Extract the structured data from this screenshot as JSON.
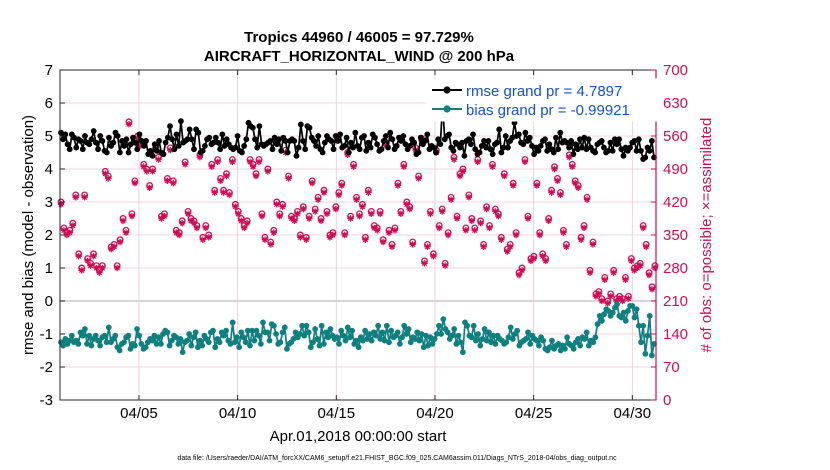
{
  "chart_data": {
    "type": "line",
    "title": "Tropics 44960 / 46005 = 97.729%",
    "subtitle": "AIRCRAFT_HORIZONTAL_WIND @ 200 hPa",
    "xlabel": "Apr.01,2018 00:00:00 start",
    "ylabel_left": "rmse and bias (model - observation)",
    "ylabel_right": "# of obs: o=possible; ×=assimilated",
    "footnote": "data file: /Users/raeder/DAI/ATM_forcXX/CAM6_setup/f.e21.FHIST_BGC.f09_025.CAM6assim.011/Diags_NTrS_2018-04/obs_diag_output.nc",
    "xlim": [
      1.0,
      31.2
    ],
    "ylim_left": [
      -3,
      7
    ],
    "ylim_right": [
      0,
      700
    ],
    "x_ticks": [
      5,
      10,
      15,
      20,
      25,
      30
    ],
    "x_tick_labels": [
      "04/05",
      "04/10",
      "04/15",
      "04/20",
      "04/25",
      "04/30"
    ],
    "y_left_ticks": [
      -3,
      -2,
      -1,
      0,
      1,
      2,
      3,
      4,
      5,
      6,
      7
    ],
    "y_left_tick_labels": [
      "-3",
      "-2",
      "-1",
      "0",
      "1",
      "2",
      "3",
      "4",
      "5",
      "6",
      "7"
    ],
    "y_right_ticks": [
      0,
      70,
      140,
      210,
      280,
      350,
      420,
      490,
      560,
      630,
      700
    ],
    "y_right_tick_labels": [
      "0",
      "70",
      "140",
      "210",
      "280",
      "350",
      "420",
      "490",
      "560",
      "630",
      "700"
    ],
    "legend": {
      "position": "top-right",
      "entries": [
        "rmse grand pr = 4.7897",
        "bias grand pr = -0.99921"
      ]
    },
    "colors": {
      "rmse": "#000000",
      "bias": "#0f7f7f",
      "obs": "#cc0e55",
      "zero_line": "#c8c8c8",
      "grid": "#f2c4d4",
      "legend_text": "#1550d0"
    },
    "series": [
      {
        "name": "rmse",
        "axis": "left",
        "values": [
          5.1,
          4.9,
          5.05,
          4.75,
          4.6,
          5.05,
          4.95,
          4.65,
          4.9,
          4.85,
          4.6,
          5.0,
          4.8,
          4.75,
          4.9,
          5.15,
          4.8,
          4.6,
          5.0,
          4.85,
          4.55,
          4.5,
          4.95,
          4.7,
          4.8,
          5.1,
          5.0,
          4.5,
          4.85,
          4.7,
          4.9,
          4.5,
          4.75,
          4.95,
          4.8,
          4.6,
          5.05,
          4.85,
          4.7,
          4.85,
          4.45,
          4.55,
          4.4,
          4.75,
          4.55,
          4.85,
          4.5,
          4.45,
          4.8,
          4.95,
          5.3,
          4.9,
          4.6,
          5.05,
          4.7,
          5.45,
          4.8,
          4.85,
          4.9,
          5.2,
          4.9,
          4.6,
          5.2,
          5.1,
          4.5,
          4.55,
          4.7,
          4.9,
          4.95,
          4.75,
          4.8,
          4.95,
          4.8,
          4.6,
          5.05,
          4.7,
          4.9,
          4.75,
          4.65,
          4.6,
          4.65,
          5.0,
          4.55,
          4.5,
          4.7,
          4.9,
          5.4,
          5.3,
          5.25,
          4.9,
          4.65,
          5.3,
          4.75,
          4.7,
          4.75,
          4.8,
          4.85,
          4.6,
          4.95,
          4.75,
          4.9,
          4.55,
          4.95,
          4.85,
          4.5,
          4.85,
          4.9,
          4.85,
          4.4,
          4.65,
          5.35,
          4.85,
          4.6,
          5.3,
          5.25,
          4.95,
          4.85,
          4.7,
          5.0,
          4.6,
          4.5,
          4.8,
          5.0,
          4.9,
          4.85,
          4.6,
          5.0,
          4.85,
          5.05,
          4.65,
          4.7,
          4.95,
          4.5,
          4.8,
          4.65,
          5.1,
          4.7,
          4.6,
          4.95,
          5.0,
          4.55,
          4.8,
          4.65,
          5.05,
          4.95,
          4.75,
          4.55,
          4.6,
          4.85,
          5.0,
          4.65,
          5.1,
          4.9,
          4.6,
          4.7,
          4.95,
          4.85,
          5.0,
          4.75,
          4.6,
          4.7,
          4.9,
          4.8,
          4.45,
          4.5,
          4.95,
          4.75,
          4.85,
          5.05,
          4.6,
          4.7,
          4.65,
          4.5,
          4.9,
          4.75,
          5.95,
          4.9,
          5.0,
          5.05,
          4.65,
          4.55,
          4.8,
          4.75,
          4.65,
          4.8,
          4.4,
          4.85,
          4.9,
          4.75,
          5.05,
          4.6,
          4.45,
          4.5,
          4.7,
          4.85,
          4.65,
          4.85,
          4.6,
          4.45,
          4.75,
          4.8,
          5.2,
          4.5,
          4.65,
          5.0,
          4.65,
          4.85,
          4.95,
          5.4,
          5.0,
          5.05,
          4.8,
          4.75,
          5.1,
          4.85,
          4.95,
          4.7,
          4.45,
          4.65,
          4.55,
          4.7,
          4.85,
          4.9,
          4.55,
          4.75,
          4.6,
          4.5,
          4.95,
          4.6,
          5.1,
          4.8,
          4.85,
          4.8,
          4.65,
          4.85,
          4.45,
          4.75,
          4.6,
          4.9,
          4.65,
          4.95,
          4.6,
          4.9,
          4.65,
          4.55,
          4.5,
          4.75,
          4.8,
          4.85,
          4.65,
          4.5,
          4.55,
          4.8,
          4.55,
          4.9,
          4.75,
          4.9,
          4.6,
          4.4,
          4.65,
          4.55,
          4.65,
          4.8,
          4.85,
          4.55,
          4.9,
          4.55,
          4.3,
          4.35,
          4.65,
          4.55,
          4.85,
          4.35
        ]
      },
      {
        "name": "bias",
        "axis": "left",
        "values": [
          -1.25,
          -1.35,
          -1.15,
          -1.3,
          -1.2,
          -1.05,
          -1.25,
          -1.2,
          -1.3,
          -0.95,
          -1.05,
          -0.85,
          -1.3,
          -1.05,
          -1.35,
          -1.15,
          -1.05,
          -1.2,
          -1.35,
          -1.1,
          -1.05,
          -1.25,
          -0.8,
          -1.25,
          -1.15,
          -1.05,
          -1.4,
          -1.5,
          -1.3,
          -1.25,
          -1.1,
          -1.05,
          -1.45,
          -1.3,
          -1.35,
          -0.85,
          -1.05,
          -1.3,
          -1.45,
          -1.4,
          -1.25,
          -1.15,
          -1.2,
          -1.05,
          -1.3,
          -1.1,
          -1.3,
          -1.0,
          -0.9,
          -0.95,
          -1.35,
          -1.2,
          -1.05,
          -1.1,
          -1.3,
          -1.15,
          -1.55,
          -1.25,
          -1.2,
          -1.0,
          -1.35,
          -1.1,
          -0.95,
          -1.4,
          -1.2,
          -1.35,
          -1.05,
          -1.15,
          -1.25,
          -0.95,
          -0.9,
          -1.4,
          -1.15,
          -1.25,
          -0.95,
          -1.05,
          -0.9,
          -1.2,
          -1.3,
          -0.65,
          -1.25,
          -1.1,
          -1.4,
          -0.95,
          -1.1,
          -1.25,
          -0.9,
          -1.35,
          -0.9,
          -1.2,
          -0.9,
          -1.05,
          -1.3,
          -0.65,
          -0.95,
          -0.95,
          -1.2,
          -0.7,
          -0.75,
          -1.0,
          -1.3,
          -1.25,
          -0.95,
          -0.8,
          -1.45,
          -1.3,
          -1.25,
          -1.15,
          -0.95,
          -1.1,
          -1.0,
          -0.75,
          -1.05,
          -0.75,
          -0.95,
          -1.4,
          -1.25,
          -0.85,
          -1.15,
          -1.35,
          -0.75,
          -1.3,
          -0.95,
          -1.1,
          -0.85,
          -1.05,
          -1.15,
          -1.1,
          -1.3,
          -0.9,
          -1.05,
          -1.2,
          -0.8,
          -1.1,
          -0.9,
          -1.3,
          -1.2,
          -1.4,
          -1.1,
          -1.2,
          -0.9,
          -1.15,
          -1.0,
          -1.2,
          -0.95,
          -1.05,
          -0.75,
          -1.15,
          -0.95,
          -1.2,
          -0.75,
          -1.25,
          -0.9,
          -1.1,
          -1.05,
          -0.95,
          -1.3,
          -1.1,
          -0.75,
          -1.0,
          -0.85,
          -1.25,
          -1.1,
          -1.15,
          -0.95,
          -1.2,
          -1.0,
          -1.4,
          -1.05,
          -1.35,
          -1.1,
          -1.3,
          -1.15,
          -1.0,
          -0.75,
          -1.0,
          -0.55,
          -0.85,
          -0.95,
          -1.15,
          -1.05,
          -0.85,
          -1.3,
          -1.05,
          -1.25,
          -1.55,
          -0.65,
          -0.75,
          -1.05,
          -1.1,
          -0.75,
          -1.2,
          -1.0,
          -1.35,
          -1.15,
          -0.85,
          -1.2,
          -0.95,
          -1.25,
          -1.05,
          -1.3,
          -1.05,
          -1.15,
          -1.2,
          -1.3,
          -1.25,
          -1.1,
          -0.8,
          -1.15,
          -1.0,
          -0.9,
          -1.35,
          -1.25,
          -1.2,
          -1.15,
          -0.95,
          -1.3,
          -1.05,
          -1.15,
          -1.2,
          -1.35,
          -1.1,
          -1.2,
          -1.45,
          -1.5,
          -1.4,
          -1.2,
          -1.45,
          -1.35,
          -1.3,
          -1.5,
          -1.35,
          -1.45,
          -1.1,
          -1.3,
          -1.35,
          -1.45,
          -1.25,
          -1.15,
          -1.35,
          -1.1,
          -1.15,
          -0.95,
          -1.35,
          -1.2,
          -1.25,
          -1.1,
          -0.7,
          -0.45,
          -0.6,
          -0.4,
          -0.25,
          -0.3,
          -0.45,
          -0.35,
          -0.2,
          -0.1,
          -0.45,
          -0.5,
          -0.35,
          -0.6,
          -0.3,
          -0.15,
          -0.15,
          -0.5,
          -0.25,
          -0.75,
          -1.25,
          -0.75,
          -1.6,
          -1.05,
          -0.45,
          -1.65,
          -1.3
        ]
      },
      {
        "name": "obs possible",
        "axis": "right",
        "values": [
          420,
          365,
          355,
          360,
          375,
          435,
          310,
          280,
          435,
          300,
          290,
          310,
          285,
          275,
          285,
          485,
          475,
          325,
          330,
          285,
          340,
          385,
          360,
          590,
          395,
          465,
          560,
          545,
          500,
          490,
          455,
          490,
          535,
          515,
          390,
          395,
          470,
          535,
          465,
          360,
          355,
          380,
          505,
          400,
          385,
          380,
          370,
          520,
          345,
          370,
          350,
          500,
          445,
          510,
          470,
          445,
          480,
          440,
          510,
          415,
          400,
          385,
          370,
          380,
          510,
          500,
          480,
          510,
          395,
          345,
          490,
          335,
          360,
          420,
          395,
          415,
          530,
          475,
          390,
          385,
          400,
          350,
          410,
          345,
          390,
          465,
          405,
          430,
          385,
          445,
          400,
          350,
          355,
          410,
          440,
          460,
          355,
          525,
          390,
          500,
          430,
          395,
          415,
          345,
          445,
          400,
          370,
          365,
          400,
          340,
          545,
          360,
          330,
          365,
          460,
          400,
          500,
          420,
          410,
          335,
          535,
          475,
          555,
          295,
          330,
          400,
          310,
          530,
          370,
          405,
          290,
          355,
          430,
          515,
          390,
          480,
          490,
          365,
          435,
          385,
          365,
          510,
          380,
          330,
          410,
          370,
          500,
          405,
          395,
          345,
          480,
          320,
          330,
          460,
          355,
          270,
          280,
          510,
          390,
          300,
          305,
          460,
          355,
          310,
          300,
          385,
          445,
          495,
          470,
          440,
          360,
          330,
          520,
          500,
          465,
          455,
          345,
          370,
          430,
          275,
          335,
          225,
          230,
          215,
          260,
          210,
          225,
          275,
          215,
          220,
          215,
          260,
          220,
          300,
          280,
          285,
          290,
          370,
          330,
          270,
          240,
          285
        ]
      },
      {
        "name": "obs assimilated",
        "axis": "right",
        "values": [
          415,
          360,
          350,
          355,
          370,
          430,
          305,
          275,
          430,
          295,
          285,
          305,
          280,
          270,
          280,
          480,
          470,
          320,
          325,
          280,
          335,
          380,
          355,
          585,
          390,
          460,
          555,
          540,
          495,
          485,
          450,
          485,
          530,
          510,
          385,
          390,
          465,
          530,
          460,
          355,
          350,
          375,
          500,
          395,
          380,
          375,
          365,
          515,
          340,
          365,
          345,
          495,
          440,
          505,
          465,
          440,
          475,
          435,
          505,
          410,
          395,
          380,
          365,
          375,
          505,
          495,
          475,
          505,
          390,
          340,
          485,
          330,
          355,
          415,
          390,
          410,
          525,
          470,
          385,
          380,
          395,
          345,
          405,
          340,
          385,
          460,
          400,
          425,
          380,
          440,
          395,
          345,
          350,
          405,
          435,
          455,
          350,
          520,
          385,
          495,
          425,
          390,
          410,
          340,
          440,
          395,
          365,
          360,
          395,
          335,
          540,
          355,
          325,
          360,
          455,
          395,
          495,
          415,
          405,
          330,
          530,
          470,
          550,
          290,
          325,
          395,
          305,
          525,
          365,
          400,
          285,
          350,
          425,
          510,
          385,
          475,
          485,
          360,
          430,
          380,
          360,
          505,
          375,
          325,
          405,
          365,
          495,
          400,
          390,
          340,
          475,
          315,
          325,
          455,
          350,
          265,
          275,
          505,
          385,
          295,
          300,
          455,
          350,
          305,
          295,
          380,
          440,
          490,
          465,
          435,
          355,
          325,
          515,
          495,
          460,
          450,
          340,
          365,
          425,
          270,
          330,
          220,
          225,
          210,
          255,
          205,
          220,
          270,
          210,
          215,
          210,
          255,
          215,
          295,
          275,
          280,
          285,
          365,
          325,
          265,
          235,
          280
        ]
      }
    ]
  }
}
